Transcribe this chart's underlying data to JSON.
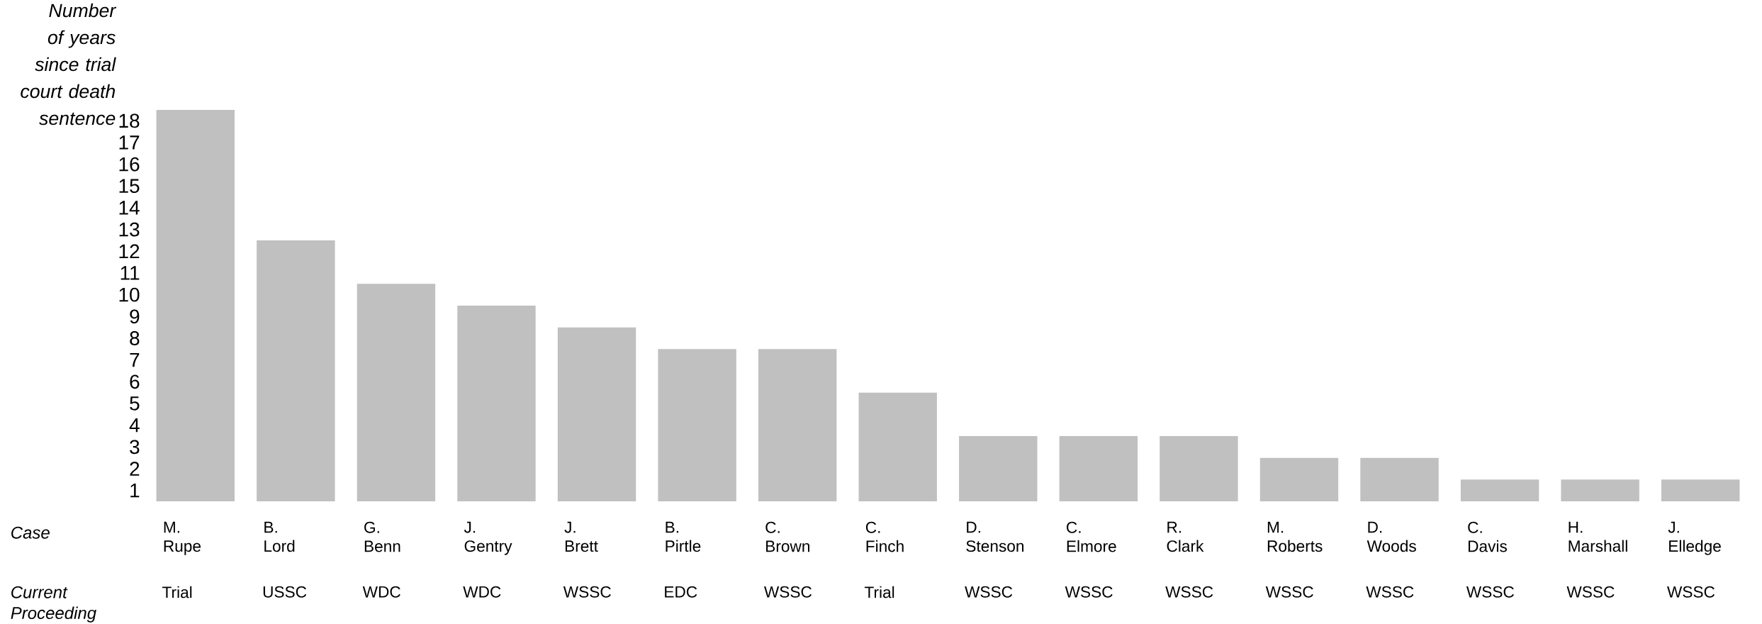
{
  "chart_data": {
    "type": "bar",
    "ylabel": "Number of years since trial court death sentence",
    "xlabel": "Case",
    "categories": [
      "M. Rupe",
      "B. Lord",
      "G. Benn",
      "J. Gentry",
      "J. Brett",
      "B. Pirtle",
      "C. Brown",
      "C. Finch",
      "D. Stenson",
      "C. Elmore",
      "R. Clark",
      "M. Roberts",
      "D. Woods",
      "C. Davis",
      "H. Marshall",
      "J. Elledge"
    ],
    "values": [
      18.5,
      12.5,
      10.5,
      9.5,
      8.5,
      7.5,
      7.5,
      5.5,
      3.5,
      3.5,
      3.5,
      2.5,
      2.5,
      1.5,
      1.5,
      1.5
    ],
    "color": "#c0c0c0",
    "ylim": [
      0.5,
      18.5
    ],
    "yticks": [
      1,
      2,
      3,
      4,
      5,
      6,
      7,
      8,
      9,
      10,
      11,
      12,
      13,
      14,
      15,
      16,
      17,
      18
    ],
    "annotations": [
      "Current Proceeding",
      "Trial",
      "USSC",
      "WDC",
      "WDC",
      "WSSC",
      "EDC",
      "WSSC",
      "Trial",
      "WSSC",
      "WSSC",
      "WSSC",
      "WSSC",
      "WSSC",
      "WSSC",
      "WSSC",
      "WSSC"
    ]
  }
}
